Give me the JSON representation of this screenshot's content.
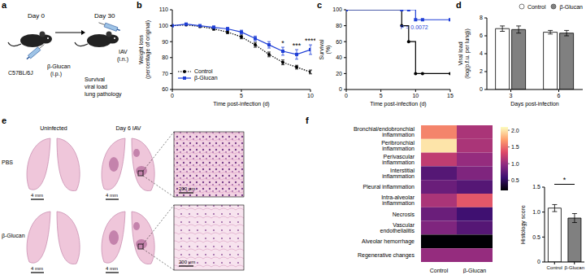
{
  "panel_labels": [
    "a",
    "b",
    "c",
    "d",
    "e",
    "f"
  ],
  "schematic": {
    "timepoints": [
      "Day 0",
      "Day 30"
    ],
    "strain": "C57BL/6J",
    "treatment": [
      "β-Glucan",
      "(i.p.)"
    ],
    "challenge": [
      "IAV",
      "(i.n.)"
    ],
    "readouts": [
      "Survival",
      "viral load",
      "lung pathology"
    ]
  },
  "histology": {
    "columns": [
      "Uninfected",
      "Day 6 IAV"
    ],
    "rows": [
      "PBS",
      "β-Glucan"
    ],
    "scale_bars": [
      "4 mm",
      "200 μm"
    ]
  },
  "chart_data": [
    {
      "type": "line",
      "x_label": "Time post-infection (d)",
      "y_label": "Weight loss (percentage of original)",
      "x": [
        0,
        1,
        2,
        3,
        4,
        5,
        6,
        7,
        8,
        9,
        10
      ],
      "xlim": [
        0,
        10
      ],
      "xticks": [
        0,
        5,
        10
      ],
      "ylim": [
        60,
        110
      ],
      "yticks": [
        60,
        70,
        80,
        90,
        100,
        110
      ],
      "legend": "lower left",
      "series": [
        {
          "name": "Control",
          "color": "#000000",
          "line_style": "dotted",
          "marker": "circle",
          "values": [
            100,
            100.5,
            99.5,
            98,
            96,
            93,
            88,
            82,
            77,
            74,
            71
          ],
          "error": [
            0.3,
            0.5,
            0.6,
            0.8,
            1,
            1.2,
            1.5,
            1.5,
            1.5,
            1.2,
            1.2
          ]
        },
        {
          "name": "β-Glucan",
          "color": "#1f3fd6",
          "line_style": "solid",
          "marker": "square",
          "values": [
            100,
            101,
            100,
            99,
            98,
            96,
            92,
            88,
            84,
            82,
            85
          ],
          "error": [
            0.3,
            0.5,
            0.6,
            0.8,
            1,
            1.2,
            1.5,
            2,
            2.5,
            3,
            3
          ]
        }
      ],
      "annotations": [
        {
          "x": 8,
          "text": "*"
        },
        {
          "x": 9,
          "text": "***"
        },
        {
          "x": 10,
          "text": "****"
        }
      ]
    },
    {
      "type": "line",
      "x_label": "Time post-infection (d)",
      "y_label": "Survival (%)",
      "x": [
        0,
        8,
        9,
        10,
        11,
        15
      ],
      "xlim": [
        0,
        15
      ],
      "xticks": [
        0,
        5,
        10,
        15
      ],
      "ylim": [
        0,
        100
      ],
      "yticks": [
        0,
        20,
        40,
        60,
        80,
        100
      ],
      "series": [
        {
          "color": "#000000",
          "line_style": "step",
          "marker": "circle",
          "values": [
            100,
            80,
            60,
            20,
            20,
            20
          ]
        },
        {
          "color": "#1f3fd6",
          "line_style": "step",
          "marker": "square",
          "values": [
            100,
            100,
            100,
            87.5,
            87.5,
            87.5
          ]
        }
      ],
      "annotations": [
        {
          "text": "P = 0.0072"
        }
      ]
    },
    {
      "type": "bar",
      "x_label": "Days post-infection",
      "y_label": "Viral load (log(p.f.u. per lung))",
      "categories": [
        "3",
        "6"
      ],
      "ylim": [
        0,
        8
      ],
      "yticks": [
        0,
        2,
        4,
        6,
        8
      ],
      "legend": "upper right",
      "series": [
        {
          "name": "Control",
          "color": "#ffffff",
          "values": [
            6.8,
            6.4
          ],
          "error": [
            0.3,
            0.2
          ]
        },
        {
          "name": "β-Glucan",
          "color": "#808080",
          "values": [
            6.7,
            6.3
          ],
          "error": [
            0.4,
            0.3
          ]
        }
      ]
    },
    {
      "type": "heatmap",
      "rows": [
        "Bronchial/endobronchial inflammation",
        "Peribronchial inflammation",
        "Perivascular inflammation",
        "Interstitial inflammation",
        "Pleural inflammation",
        "Intra-alveolar inflammation",
        "Necrosis",
        "Vascular endothelialitis",
        "Alveolar hemorrhage",
        "Regenerative changes"
      ],
      "columns": [
        "Control",
        "β-Glucan"
      ],
      "cells": [
        [
          1.6,
          1.1
        ],
        [
          2.0,
          1.1
        ],
        [
          1.2,
          1.0
        ],
        [
          0.7,
          0.9
        ],
        [
          0.8,
          0.7
        ],
        [
          1.1,
          1.4
        ],
        [
          0.8,
          0.6
        ],
        [
          0.9,
          0.7
        ],
        [
          0.2,
          0.2
        ],
        [
          1.0,
          1.0
        ]
      ],
      "color_range": [
        0.2,
        2.1
      ],
      "color_ticks": [
        0.5,
        {
          "value": 1,
          "label": "1.0"
        },
        1.5,
        {
          "value": 2,
          "label": "2.0"
        }
      ]
    },
    {
      "type": "bar",
      "y_label": "Histology score",
      "categories": [
        "Control",
        "β-Glucan"
      ],
      "values": [
        1.08,
        0.88
      ],
      "error": [
        0.07,
        0.09
      ],
      "colors": [
        "#ffffff",
        "#808080"
      ],
      "ylim": [
        0,
        1.5
      ],
      "yticks": [
        0,
        0.5,
        {
          "value": 1,
          "label": "1.0"
        },
        1.5
      ],
      "annotations": [
        {
          "text": "*"
        }
      ]
    }
  ]
}
